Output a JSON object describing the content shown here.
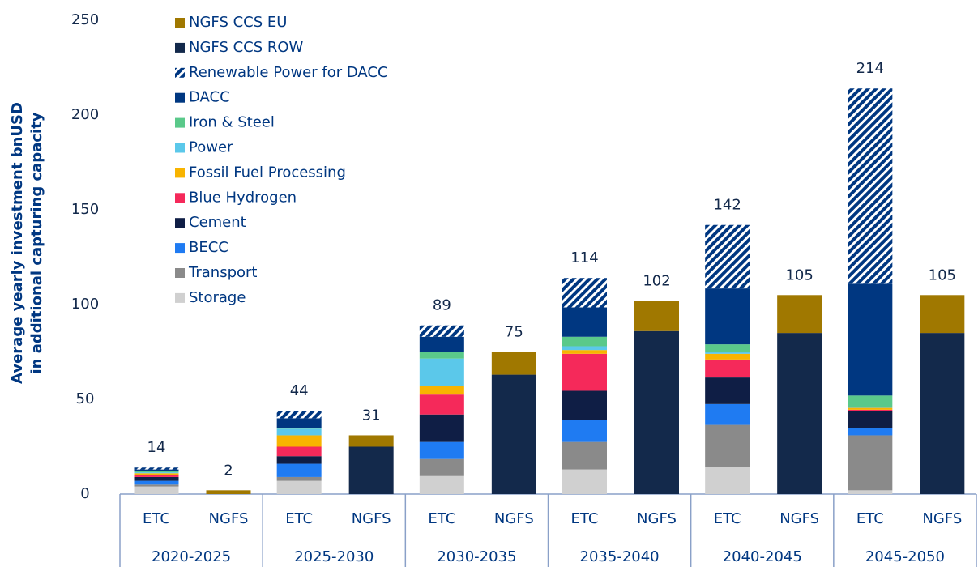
{
  "chart_data": {
    "type": "stacked_bar",
    "y_label": [
      "Average yearly investment bnUSD",
      "in additional capturing capacity"
    ],
    "groups": [
      "2020-2025",
      "2025-2030",
      "2030-2035",
      "2035-2040",
      "2040-2045",
      "2045-2050"
    ],
    "categories": [
      "ETC",
      "NGFS",
      "ETC",
      "NGFS",
      "ETC",
      "NGFS",
      "ETC",
      "NGFS",
      "ETC",
      "NGFS",
      "ETC",
      "NGFS"
    ],
    "totals": [
      14,
      2,
      44,
      31,
      89,
      75,
      114,
      102,
      142,
      105,
      214,
      105
    ],
    "ylim": [
      0,
      250
    ],
    "yticks": [
      0,
      50,
      100,
      150,
      200,
      250
    ],
    "series": [
      {
        "name": "NGFS CCS EU",
        "color": "#a07800",
        "values": [
          null,
          2,
          null,
          6,
          null,
          12,
          null,
          16,
          null,
          20,
          null,
          20
        ]
      },
      {
        "name": "NGFS CCS ROW",
        "color": "#13294b",
        "values": [
          null,
          0,
          null,
          25,
          null,
          63,
          null,
          86,
          null,
          85,
          null,
          85
        ]
      },
      {
        "name": "Renewable Power for DACC",
        "color": "#003781",
        "hatch": true,
        "values": [
          1,
          null,
          4,
          null,
          6,
          null,
          15.5,
          null,
          33.5,
          null,
          103,
          null
        ]
      },
      {
        "name": "DACC",
        "color": "#003781",
        "values": [
          1,
          null,
          5,
          null,
          8,
          null,
          15.5,
          null,
          29.5,
          null,
          59,
          null
        ]
      },
      {
        "name": "Iron & Steel",
        "color": "#5ac98a",
        "values": [
          0.5,
          null,
          0.5,
          null,
          3.5,
          null,
          5,
          null,
          4,
          null,
          6,
          null
        ]
      },
      {
        "name": "Power",
        "color": "#5bc8ea",
        "values": [
          0.5,
          null,
          3.5,
          null,
          14.5,
          null,
          2,
          null,
          1,
          null,
          0.5,
          null
        ]
      },
      {
        "name": "Fossil Fuel Processing",
        "color": "#f8b400",
        "values": [
          1,
          null,
          6,
          null,
          4.5,
          null,
          2,
          null,
          3,
          null,
          1,
          null
        ]
      },
      {
        "name": "Blue Hydrogen",
        "color": "#f5295a",
        "values": [
          1,
          null,
          5,
          null,
          10.5,
          null,
          19.5,
          null,
          9.5,
          null,
          0.5,
          null
        ]
      },
      {
        "name": "Cement",
        "color": "#0f1e45",
        "values": [
          2,
          null,
          4,
          null,
          14.5,
          null,
          15.5,
          null,
          14,
          null,
          9,
          null
        ]
      },
      {
        "name": "BECC",
        "color": "#1f7bf2",
        "values": [
          2,
          null,
          7,
          null,
          9,
          null,
          11.5,
          null,
          11,
          null,
          4,
          null
        ]
      },
      {
        "name": "Transport",
        "color": "#8a8a8a",
        "values": [
          1,
          null,
          2,
          null,
          9,
          null,
          14.5,
          null,
          22,
          null,
          29,
          null
        ]
      },
      {
        "name": "Storage",
        "color": "#d0d0d0",
        "values": [
          4,
          null,
          7,
          null,
          9.5,
          null,
          13,
          null,
          14.5,
          null,
          2,
          null
        ]
      }
    ]
  }
}
